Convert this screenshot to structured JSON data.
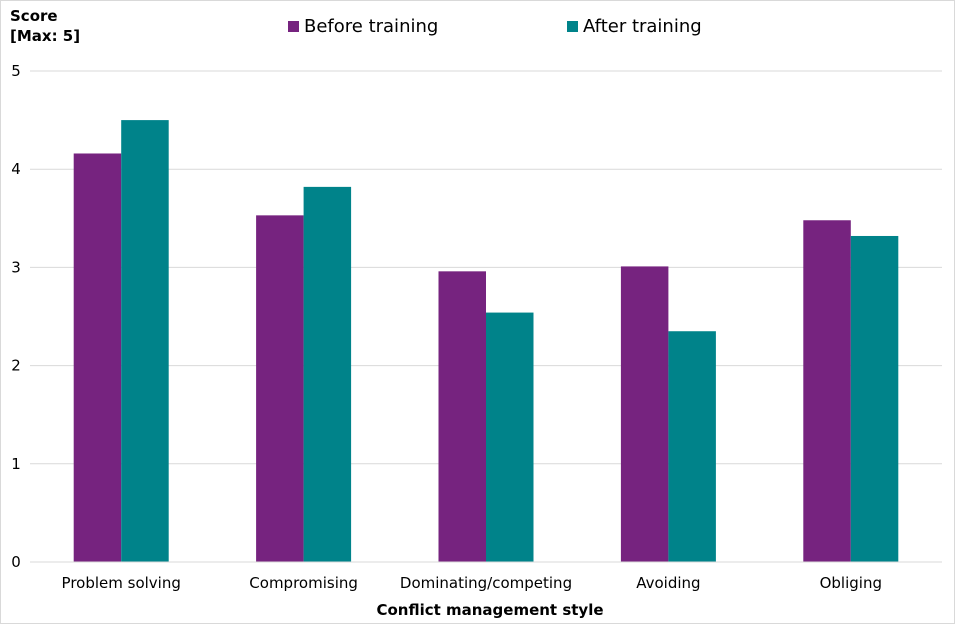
{
  "chart_data": {
    "type": "bar",
    "ylabel": "Score\n[Max: 5]",
    "ylabel_lines": [
      "Score",
      "[Max: 5]"
    ],
    "xlabel": "Conflict management style",
    "categories": [
      "Problem solving",
      "Compromising",
      "Dominating/competing",
      "Avoiding",
      "Obliging"
    ],
    "series": [
      {
        "name": "Before training",
        "color": "#76237f",
        "values": [
          4.16,
          3.53,
          2.96,
          3.01,
          3.48
        ]
      },
      {
        "name": "After training",
        "color": "#00838a",
        "values": [
          4.5,
          3.82,
          2.54,
          2.35,
          3.32
        ]
      }
    ],
    "ylim": [
      0,
      5
    ],
    "yticks": [
      "0",
      "1",
      "2",
      "3",
      "4",
      "5"
    ],
    "grid": true,
    "legend_position": "top"
  }
}
